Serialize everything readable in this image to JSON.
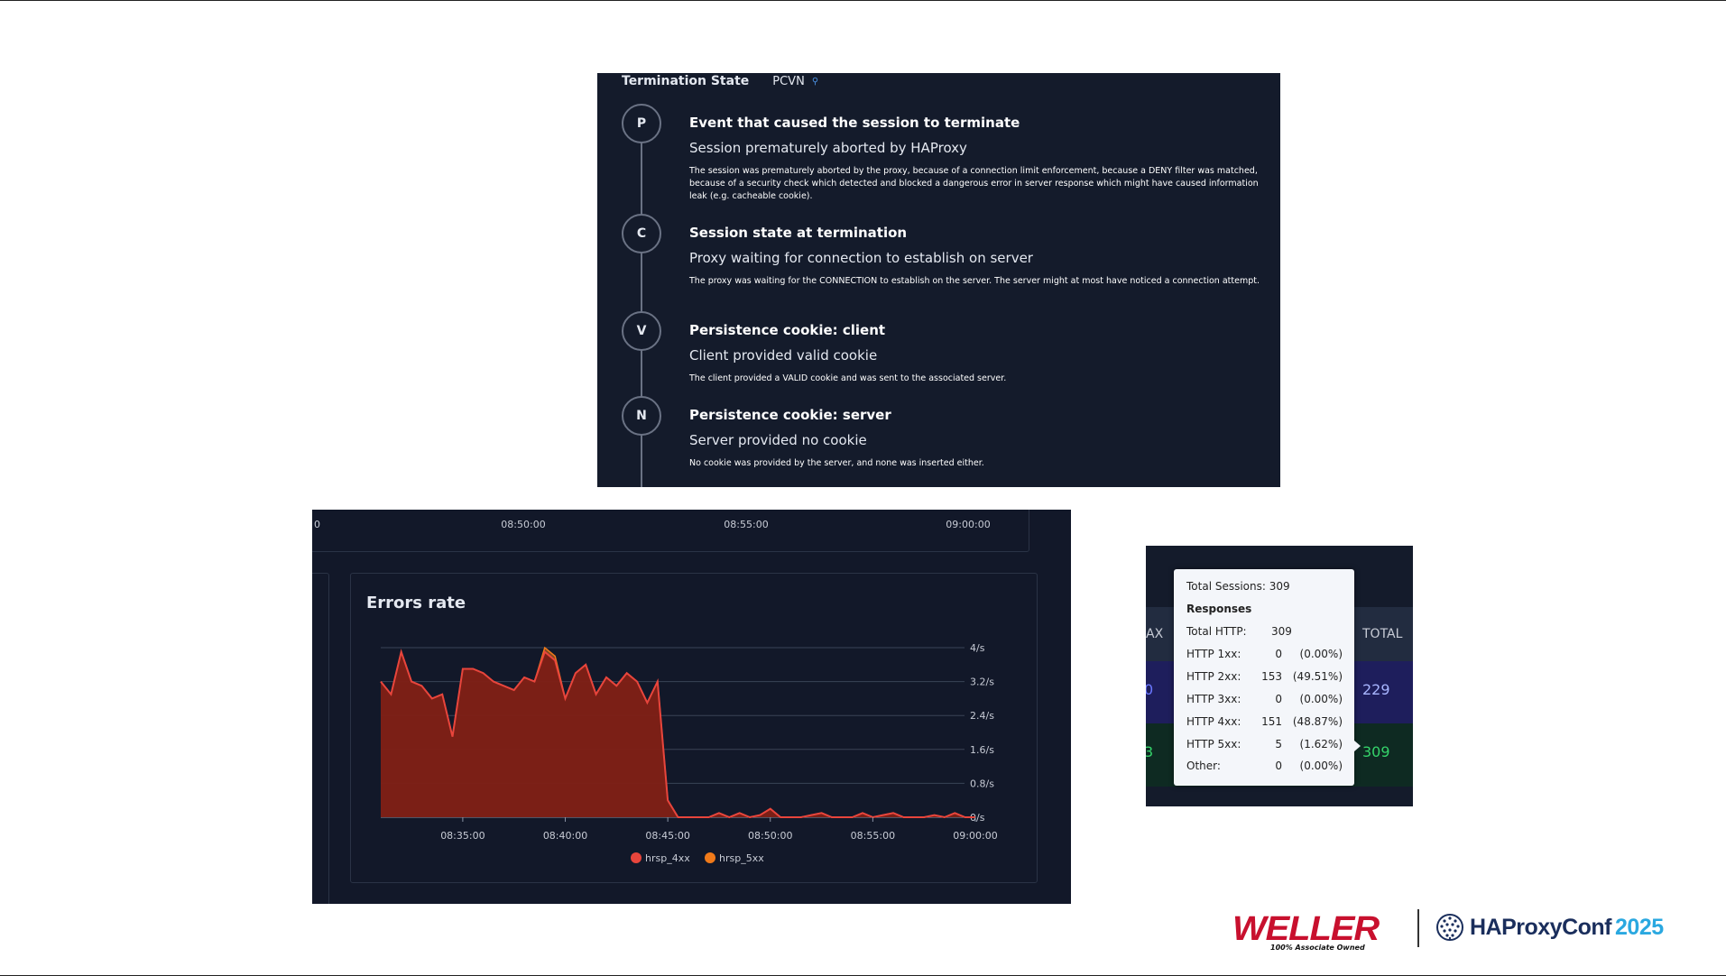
{
  "termination": {
    "label": "Termination State",
    "value": "PCVN",
    "steps": [
      {
        "letter": "P",
        "heading": "Event that caused the session to terminate",
        "summary": "Session prematurely aborted by HAProxy",
        "detail": "The session was prematurely aborted by the proxy, because of a connection limit enforcement, because a DENY filter was matched, because of a security check which detected and blocked a dangerous error in server response which might have caused information leak (e.g. cacheable cookie)."
      },
      {
        "letter": "C",
        "heading": "Session state at termination",
        "summary": "Proxy waiting for connection to establish on server",
        "detail": "The proxy was waiting for the CONNECTION to establish on the server. The server might at most have noticed a connection attempt."
      },
      {
        "letter": "V",
        "heading": "Persistence cookie: client",
        "summary": "Client provided valid cookie",
        "detail": "The client provided a VALID cookie and was sent to the associated server."
      },
      {
        "letter": "N",
        "heading": "Persistence cookie: server",
        "summary": "Server provided no cookie",
        "detail": "No cookie was provided by the server, and none was inserted either."
      }
    ]
  },
  "errors_panel": {
    "top_ticks": [
      "0",
      "08:50:00",
      "08:55:00",
      "09:00:00"
    ]
  },
  "chart_data": {
    "type": "area",
    "title": "Errors rate",
    "x_ticks": [
      "08:35:00",
      "08:40:00",
      "08:45:00",
      "08:50:00",
      "08:55:00",
      "09:00:00"
    ],
    "y_ticks": [
      "0/s",
      "0.8/s",
      "1.6/s",
      "2.4/s",
      "3.2/s",
      "4/s"
    ],
    "ylim": [
      0,
      4
    ],
    "grid": true,
    "legend": "bottom",
    "x_minutes": [
      0,
      0.5,
      1,
      1.5,
      2,
      2.5,
      3,
      3.5,
      4,
      4.5,
      5,
      5.5,
      6,
      6.5,
      7,
      7.5,
      8,
      8.5,
      9,
      9.5,
      10,
      10.5,
      11,
      11.5,
      12,
      12.5,
      13,
      13.5,
      14,
      14.5,
      15,
      15.5,
      16,
      16.5,
      17,
      17.5,
      18,
      18.5,
      19,
      19.5,
      20,
      20.5,
      21,
      21.5,
      22,
      22.5,
      23,
      23.5,
      24,
      24.5,
      25,
      25.5,
      26,
      26.5,
      27,
      27.5,
      28,
      28.5,
      29
    ],
    "series": [
      {
        "name": "hrsp_4xx",
        "color": "#e8453c",
        "values": [
          3.2,
          2.9,
          3.9,
          3.2,
          3.1,
          2.8,
          2.9,
          1.9,
          3.5,
          3.5,
          3.4,
          3.2,
          3.1,
          3.0,
          3.3,
          3.2,
          3.9,
          3.7,
          2.8,
          3.4,
          3.6,
          2.9,
          3.3,
          3.1,
          3.4,
          3.2,
          2.7,
          3.2,
          0.4,
          0,
          0,
          0,
          0,
          0.1,
          0,
          0.1,
          0,
          0.05,
          0.2,
          0,
          0,
          0,
          0.05,
          0.1,
          0,
          0,
          0,
          0.1,
          0,
          0.05,
          0.1,
          0,
          0,
          0,
          0.05,
          0,
          0.1,
          0,
          0
        ]
      },
      {
        "name": "hrsp_5xx",
        "color": "#f07a1a",
        "values": [
          3.2,
          2.9,
          3.9,
          3.2,
          3.1,
          2.8,
          2.9,
          1.9,
          3.5,
          3.5,
          3.4,
          3.2,
          3.1,
          3.0,
          3.3,
          3.2,
          4.0,
          3.8,
          2.8,
          3.4,
          3.6,
          2.9,
          3.3,
          3.1,
          3.4,
          3.2,
          2.7,
          3.2,
          0.4,
          0,
          0,
          0,
          0,
          0.1,
          0,
          0.1,
          0,
          0.05,
          0.2,
          0,
          0,
          0,
          0.05,
          0.1,
          0,
          0,
          0,
          0.1,
          0,
          0.05,
          0.1,
          0,
          0,
          0,
          0.05,
          0,
          0.1,
          0,
          0
        ]
      }
    ]
  },
  "stats": {
    "col_partial": "AX",
    "col_total": "TOTAL",
    "row1_total": "229",
    "row2_total": "309",
    "row1_partial": "0",
    "row2_partial": "3",
    "tooltip": {
      "total_sessions": "Total Sessions: 309",
      "responses": "Responses",
      "lines": [
        {
          "label": "Total HTTP:",
          "count": "309",
          "pct": ""
        },
        {
          "label": "HTTP 1xx:",
          "count": "0",
          "pct": "(0.00%)"
        },
        {
          "label": "HTTP 2xx:",
          "count": "153",
          "pct": "(49.51%)"
        },
        {
          "label": "HTTP 3xx:",
          "count": "0",
          "pct": "(0.00%)"
        },
        {
          "label": "HTTP 4xx:",
          "count": "151",
          "pct": "(48.87%)"
        },
        {
          "label": "HTTP 5xx:",
          "count": "5",
          "pct": "(1.62%)"
        },
        {
          "label": "Other:",
          "count": "0",
          "pct": "(0.00%)"
        }
      ]
    }
  },
  "logos": {
    "weller": "WELLER",
    "weller_sub": "100% Associate Owned",
    "haproxy": "HAProxyConf",
    "haproxy_year": "2025"
  }
}
